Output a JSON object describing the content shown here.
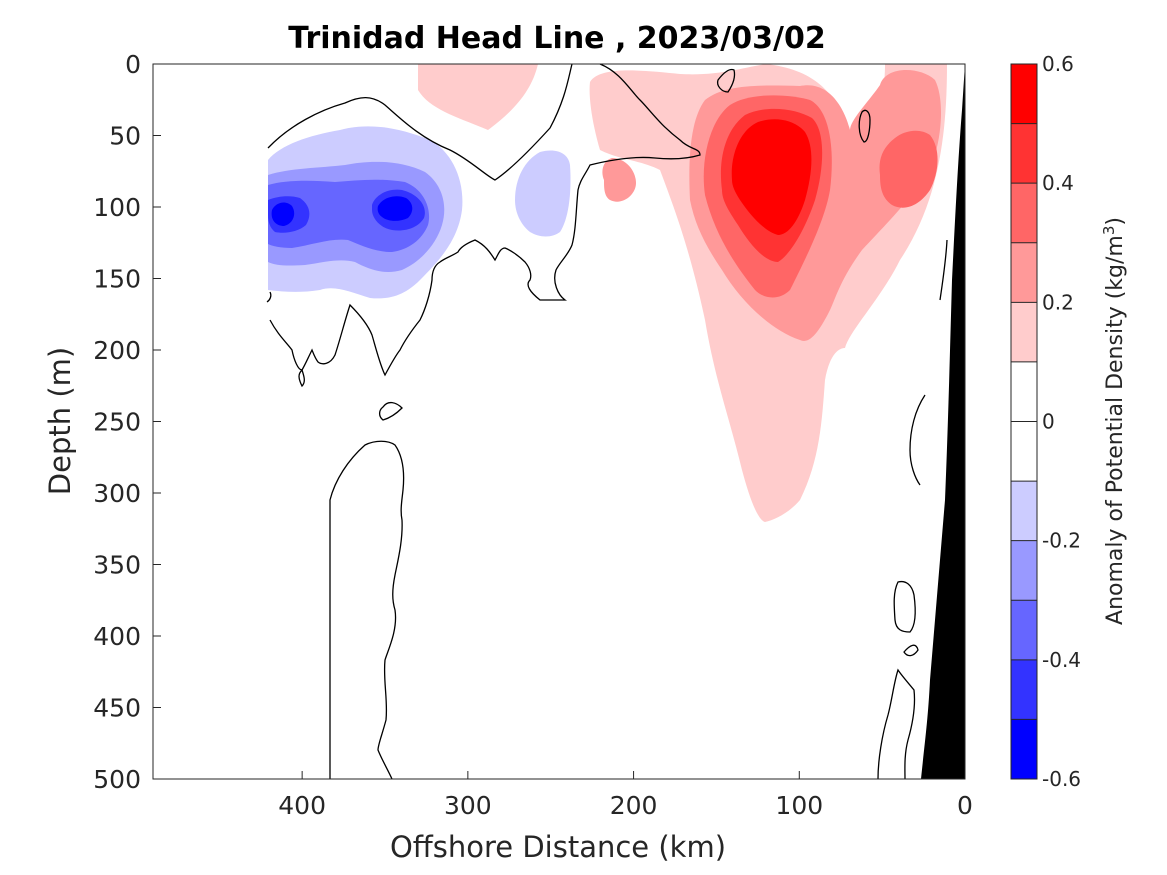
{
  "chart_data": {
    "type": "heatmap",
    "title": "Trinidad Head Line , 2023/03/02",
    "xlabel": "Offshore Distance (km)",
    "ylabel": "Depth (m)",
    "xlim": [
      490,
      0
    ],
    "ylim": [
      0,
      500
    ],
    "x_reversed": true,
    "y_reversed": true,
    "xticks": [
      400,
      300,
      200,
      100,
      0
    ],
    "yticks": [
      0,
      50,
      100,
      150,
      200,
      250,
      300,
      350,
      400,
      450,
      500
    ],
    "colorbar": {
      "label": "Anomaly of Potential Density (kg/m",
      "label_sup": "3",
      "label_tail": ")",
      "ticks": [
        "0.6",
        "0.4",
        "0.2",
        "0",
        "-0.2",
        "-0.4",
        "-0.6"
      ],
      "levels": [
        0.6,
        0.5,
        0.4,
        0.3,
        0.2,
        0.1,
        0.0,
        -0.1,
        -0.2,
        -0.3,
        -0.4,
        -0.5,
        -0.6
      ],
      "colors": [
        "#ff0000",
        "#ff3333",
        "#ff6666",
        "#ff9999",
        "#ffcccc",
        "#ffffff",
        "#ffffff",
        "#ccccff",
        "#9999ff",
        "#6666ff",
        "#3333ff",
        "#0000ff"
      ]
    },
    "features": [
      {
        "name": "positive anomaly core",
        "x_km": 113,
        "depth_m": 85,
        "value": 0.55
      },
      {
        "name": "positive anomaly secondary",
        "x_km": 33,
        "depth_m": 75,
        "value": 0.35
      },
      {
        "name": "positive anomaly small",
        "x_km": 205,
        "depth_m": 90,
        "value": 0.25
      },
      {
        "name": "positive anomaly surface",
        "x_km": 290,
        "depth_m": 20,
        "value": 0.15
      },
      {
        "name": "negative anomaly core west",
        "x_km": 410,
        "depth_m": 105,
        "value": -0.45
      },
      {
        "name": "negative anomaly core",
        "x_km": 345,
        "depth_m": 100,
        "value": -0.45
      },
      {
        "name": "negative anomaly small",
        "x_km": 250,
        "depth_m": 90,
        "value": -0.15
      }
    ],
    "bathymetry_color": "#000000"
  }
}
